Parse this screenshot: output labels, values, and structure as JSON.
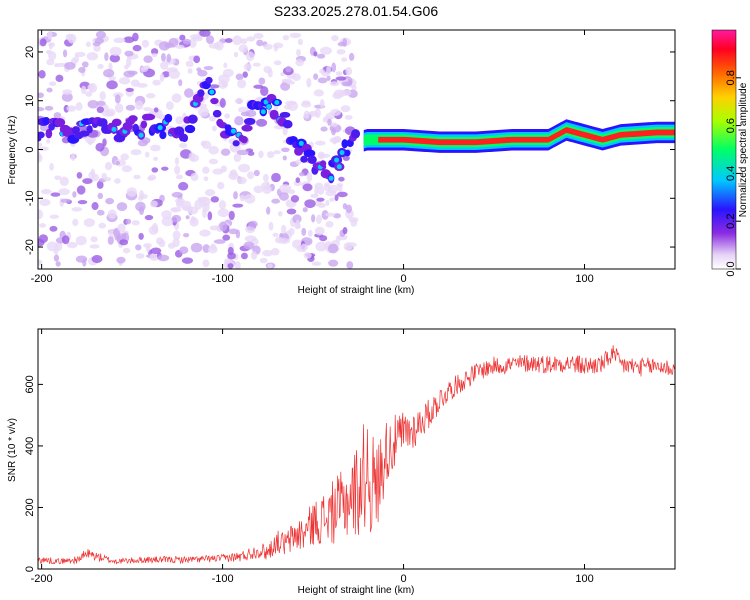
{
  "chart_data": [
    {
      "type": "heatmap",
      "title": "S233.2025.278.01.54.G06",
      "xlabel": "Height of straight line (km)",
      "ylabel": "Frequency (Hz)",
      "xlim": [
        -202,
        150
      ],
      "ylim": [
        -24.5,
        24.5
      ],
      "xticks": [
        -200,
        -100,
        0,
        100
      ],
      "yticks": [
        -20,
        -10,
        0,
        10,
        20
      ],
      "xtick_labels": [
        "-200",
        "-100",
        "0",
        "100"
      ],
      "ytick_labels": [
        "-20",
        "-10",
        "0",
        "10",
        "20"
      ],
      "ridge": {
        "description": "dominant frequency vs height",
        "x": [
          -200,
          -180,
          -160,
          -140,
          -120,
          -108,
          -100,
          -90,
          -80,
          -70,
          -60,
          -50,
          -40,
          -30,
          -20,
          -10,
          0,
          20,
          40,
          60,
          80,
          90,
          100,
          110,
          120,
          140,
          150
        ],
        "freq": [
          4,
          4,
          4,
          5,
          4,
          16,
          5,
          2,
          10,
          8,
          2,
          -2,
          -5,
          1,
          2,
          2,
          2,
          1.5,
          1.5,
          2,
          2,
          4,
          3,
          2,
          3,
          3.5,
          3.5
        ]
      },
      "colorbar": {
        "label": "Normalized spectral amplitude",
        "range": [
          0,
          1
        ],
        "ticks": [
          0.0,
          0.2,
          0.4,
          0.6,
          0.8
        ],
        "tick_labels": [
          "0.0",
          "0.2",
          "0.4",
          "0.6",
          "0.8"
        ]
      }
    },
    {
      "type": "line",
      "title": "",
      "xlabel": "Height of straight line (km)",
      "ylabel": "SNR (10 * v/v)",
      "xlim": [
        -202,
        150
      ],
      "ylim": [
        0,
        780
      ],
      "xticks": [
        -200,
        -100,
        0,
        100
      ],
      "yticks": [
        0,
        200,
        400,
        600
      ],
      "xtick_labels": [
        "-200",
        "-100",
        "0",
        "100"
      ],
      "ytick_labels": [
        "0",
        "200",
        "400",
        "600"
      ],
      "color": "#ee3333",
      "series": [
        {
          "name": "SNR",
          "x": [
            -202,
            -190,
            -180,
            -175,
            -160,
            -140,
            -120,
            -100,
            -90,
            -80,
            -75,
            -70,
            -65,
            -60,
            -55,
            -50,
            -45,
            -40,
            -35,
            -30,
            -25,
            -22,
            -20,
            -18,
            -15,
            -12,
            -10,
            -5,
            0,
            5,
            10,
            15,
            20,
            25,
            30,
            35,
            40,
            45,
            50,
            60,
            70,
            80,
            90,
            100,
            110,
            115,
            120,
            130,
            140,
            150
          ],
          "values": [
            30,
            25,
            30,
            50,
            25,
            30,
            30,
            35,
            40,
            60,
            55,
            90,
            80,
            110,
            115,
            150,
            160,
            180,
            200,
            230,
            260,
            300,
            340,
            280,
            260,
            330,
            380,
            410,
            440,
            450,
            480,
            510,
            550,
            580,
            600,
            620,
            640,
            650,
            660,
            665,
            670,
            665,
            670,
            660,
            665,
            700,
            665,
            655,
            660,
            650
          ],
          "spread": [
            20,
            15,
            20,
            30,
            15,
            18,
            18,
            20,
            30,
            40,
            50,
            60,
            70,
            90,
            100,
            120,
            140,
            170,
            190,
            220,
            260,
            300,
            330,
            300,
            250,
            220,
            180,
            150,
            130,
            110,
            90,
            80,
            70,
            60,
            55,
            55,
            50,
            50,
            50,
            50,
            50,
            50,
            50,
            55,
            50,
            60,
            55,
            50,
            50,
            50
          ]
        }
      ]
    }
  ]
}
